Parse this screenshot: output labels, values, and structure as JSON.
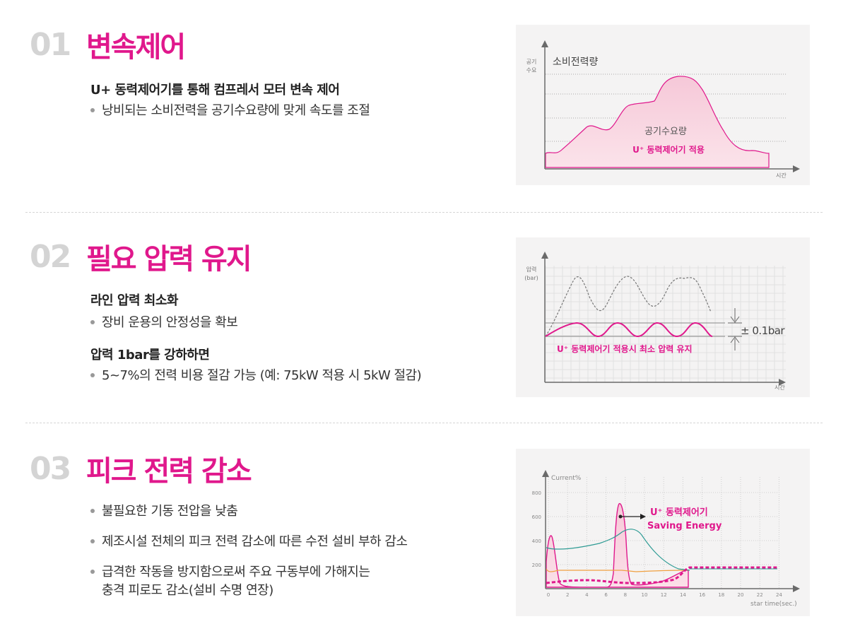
{
  "sections": [
    {
      "num": "01",
      "title": "변속제어",
      "subhead": "U+ 동력제어기를 통해 컴프레서 모터 변속 제어",
      "bullets": [
        "낭비되는 소비전력을 공기수요량에 맞게 속도를 조절"
      ],
      "chart": {
        "ylabel_1": "공기",
        "ylabel_2": "수요",
        "top_label": "소비전력량",
        "center_label": "공기수요량",
        "pink_label": "U⁺ 동력제어기 적용",
        "xlabel": "시간"
      }
    },
    {
      "num": "02",
      "title": "필요 압력 유지",
      "subhead": "라인 압력 최소화",
      "bullet1": "장비 운용의 안정성을 확보",
      "subhead2": "압력 1bar를 강하하면",
      "bullet2": "5~7%의 전력 비용 절감 가능 (예: 75kW 적용 시 5kW 절감)",
      "chart": {
        "ylabel_1": "압력",
        "ylabel_2": "(bar)",
        "band_label": "± 0.1bar",
        "pink_label": "U⁺ 동력제어기 적용시 최소 압력 유지",
        "xlabel": "시간"
      }
    },
    {
      "num": "03",
      "title": "피크 전력 감소",
      "bullets": [
        "불필요한 기동 전압을 낮춤",
        "제조시설 전체의 피크 전력 감소에 따른 수전 설비 부하 감소",
        "급격한 작동을 방지함으로써 주요 구동부에 가해지는",
        "충격 피로도 감소(설비 수명 연장)"
      ],
      "chart": {
        "ylabel": "Current%",
        "yticks": [
          "800",
          "600",
          "400",
          "200"
        ],
        "xticks": [
          "0",
          "2",
          "4",
          "6",
          "8",
          "10",
          "12",
          "14",
          "16",
          "18",
          "20",
          "22",
          "24"
        ],
        "xlabel": "star time(sec.)",
        "pink_label_1": "U⁺ 동력제어기",
        "pink_label_2": "Saving Energy"
      }
    }
  ],
  "colors": {
    "accent": "#e0188c",
    "number_gray": "#d4d4d4",
    "panel_bg": "#f4f3f3",
    "teal": "#2e9b94",
    "orange": "#f0a040"
  }
}
